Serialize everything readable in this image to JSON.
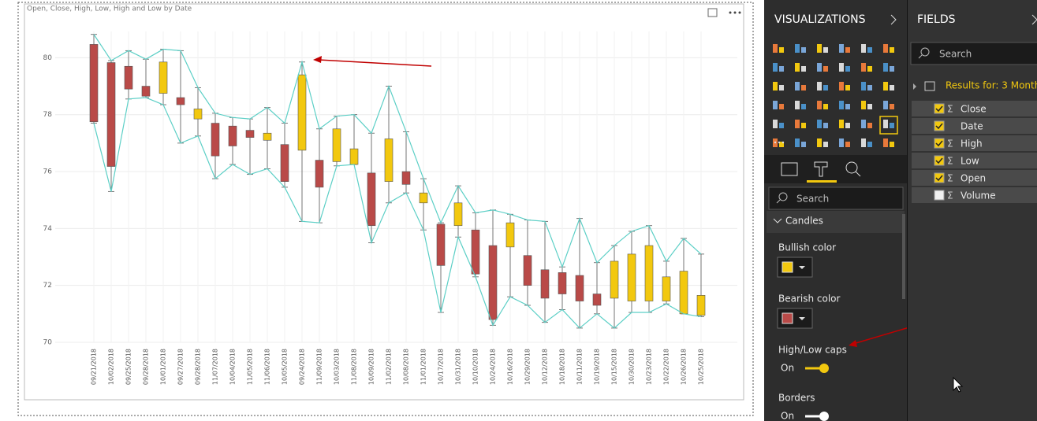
{
  "chart_data": {
    "type": "candlestick",
    "title": "Open, Close, High, Low, High and Low by Date",
    "categories": [
      "09/21/2018",
      "10/02/2018",
      "09/25/2018",
      "09/28/2018",
      "10/01/2018",
      "09/27/2018",
      "09/28/2018",
      "11/07/2018",
      "10/04/2018",
      "11/05/2018",
      "11/06/2018",
      "10/05/2018",
      "09/24/2018",
      "11/09/2018",
      "10/03/2018",
      "11/08/2018",
      "10/09/2018",
      "11/02/2018",
      "10/08/2018",
      "11/01/2018",
      "10/17/2018",
      "10/31/2018",
      "10/10/2018",
      "10/24/2018",
      "10/16/2018",
      "10/29/2018",
      "10/12/2018",
      "10/18/2018",
      "10/11/2018",
      "10/19/2018",
      "10/15/2018",
      "10/30/2018",
      "10/23/2018",
      "10/22/2018",
      "10/26/2018",
      "10/25/2018"
    ],
    "open": [
      80.47,
      79.83,
      79.7,
      79.0,
      78.75,
      78.6,
      77.85,
      77.7,
      77.6,
      77.45,
      77.1,
      76.95,
      76.75,
      76.4,
      76.35,
      76.25,
      75.95,
      75.65,
      76.0,
      74.9,
      74.15,
      74.1,
      73.95,
      73.4,
      73.35,
      73.05,
      72.55,
      72.45,
      72.35,
      71.7,
      71.55,
      71.45,
      71.45,
      71.45,
      71.0,
      70.95
    ],
    "close": [
      77.75,
      76.18,
      78.9,
      78.65,
      79.85,
      78.35,
      78.2,
      76.55,
      76.9,
      77.2,
      77.35,
      75.65,
      79.4,
      75.45,
      77.5,
      76.8,
      74.1,
      77.15,
      75.55,
      75.25,
      72.7,
      74.9,
      72.4,
      70.8,
      74.2,
      72.0,
      71.55,
      71.7,
      71.45,
      71.3,
      72.85,
      73.1,
      73.4,
      72.3,
      72.5,
      71.65
    ],
    "high": [
      80.82,
      79.9,
      80.25,
      79.95,
      80.3,
      80.25,
      78.95,
      78.05,
      77.9,
      77.85,
      78.25,
      77.7,
      79.85,
      77.5,
      77.95,
      78.0,
      77.35,
      79.0,
      77.4,
      75.75,
      74.2,
      75.5,
      74.55,
      74.65,
      74.5,
      74.3,
      74.25,
      72.65,
      74.35,
      72.8,
      73.4,
      73.9,
      74.1,
      72.85,
      73.65,
      73.1
    ],
    "low": [
      77.7,
      75.3,
      78.55,
      78.6,
      78.35,
      77.0,
      77.25,
      75.75,
      76.25,
      75.9,
      76.1,
      75.45,
      74.25,
      74.2,
      76.2,
      76.25,
      73.5,
      74.9,
      75.25,
      73.95,
      71.05,
      73.7,
      72.3,
      70.6,
      71.6,
      71.3,
      70.7,
      71.15,
      70.5,
      71.0,
      70.5,
      71.05,
      71.05,
      71.35,
      71.0,
      70.9
    ],
    "bullish_color": "#f2c80f",
    "bearish_color": "#b94a48",
    "line_color": "#5ccfc6",
    "ylim": [
      70,
      81.2
    ],
    "yticks": [
      70,
      72,
      74,
      76,
      78,
      80
    ],
    "grid": true
  },
  "visualizations_pane": {
    "title": "VISUALIZATIONS",
    "search_placeholder": "Search",
    "section": "Candles",
    "settings": [
      {
        "label": "Bullish color"
      },
      {
        "label": "Bearish color"
      },
      {
        "label": "High/Low caps",
        "state": "On"
      },
      {
        "label": "Borders",
        "state": "On"
      }
    ]
  },
  "fields_pane": {
    "title": "FIELDS",
    "search_placeholder": "Search",
    "table": "Results for: 3 Month...",
    "fields": [
      {
        "name": "Close",
        "checked": true,
        "icon": "Σ"
      },
      {
        "name": "Date",
        "checked": true
      },
      {
        "name": "High",
        "checked": true,
        "icon": "Σ"
      },
      {
        "name": "Low",
        "checked": true,
        "icon": "Σ"
      },
      {
        "name": "Open",
        "checked": true,
        "icon": "Σ"
      },
      {
        "name": "Volume",
        "checked": false,
        "icon": "Σ"
      }
    ]
  }
}
